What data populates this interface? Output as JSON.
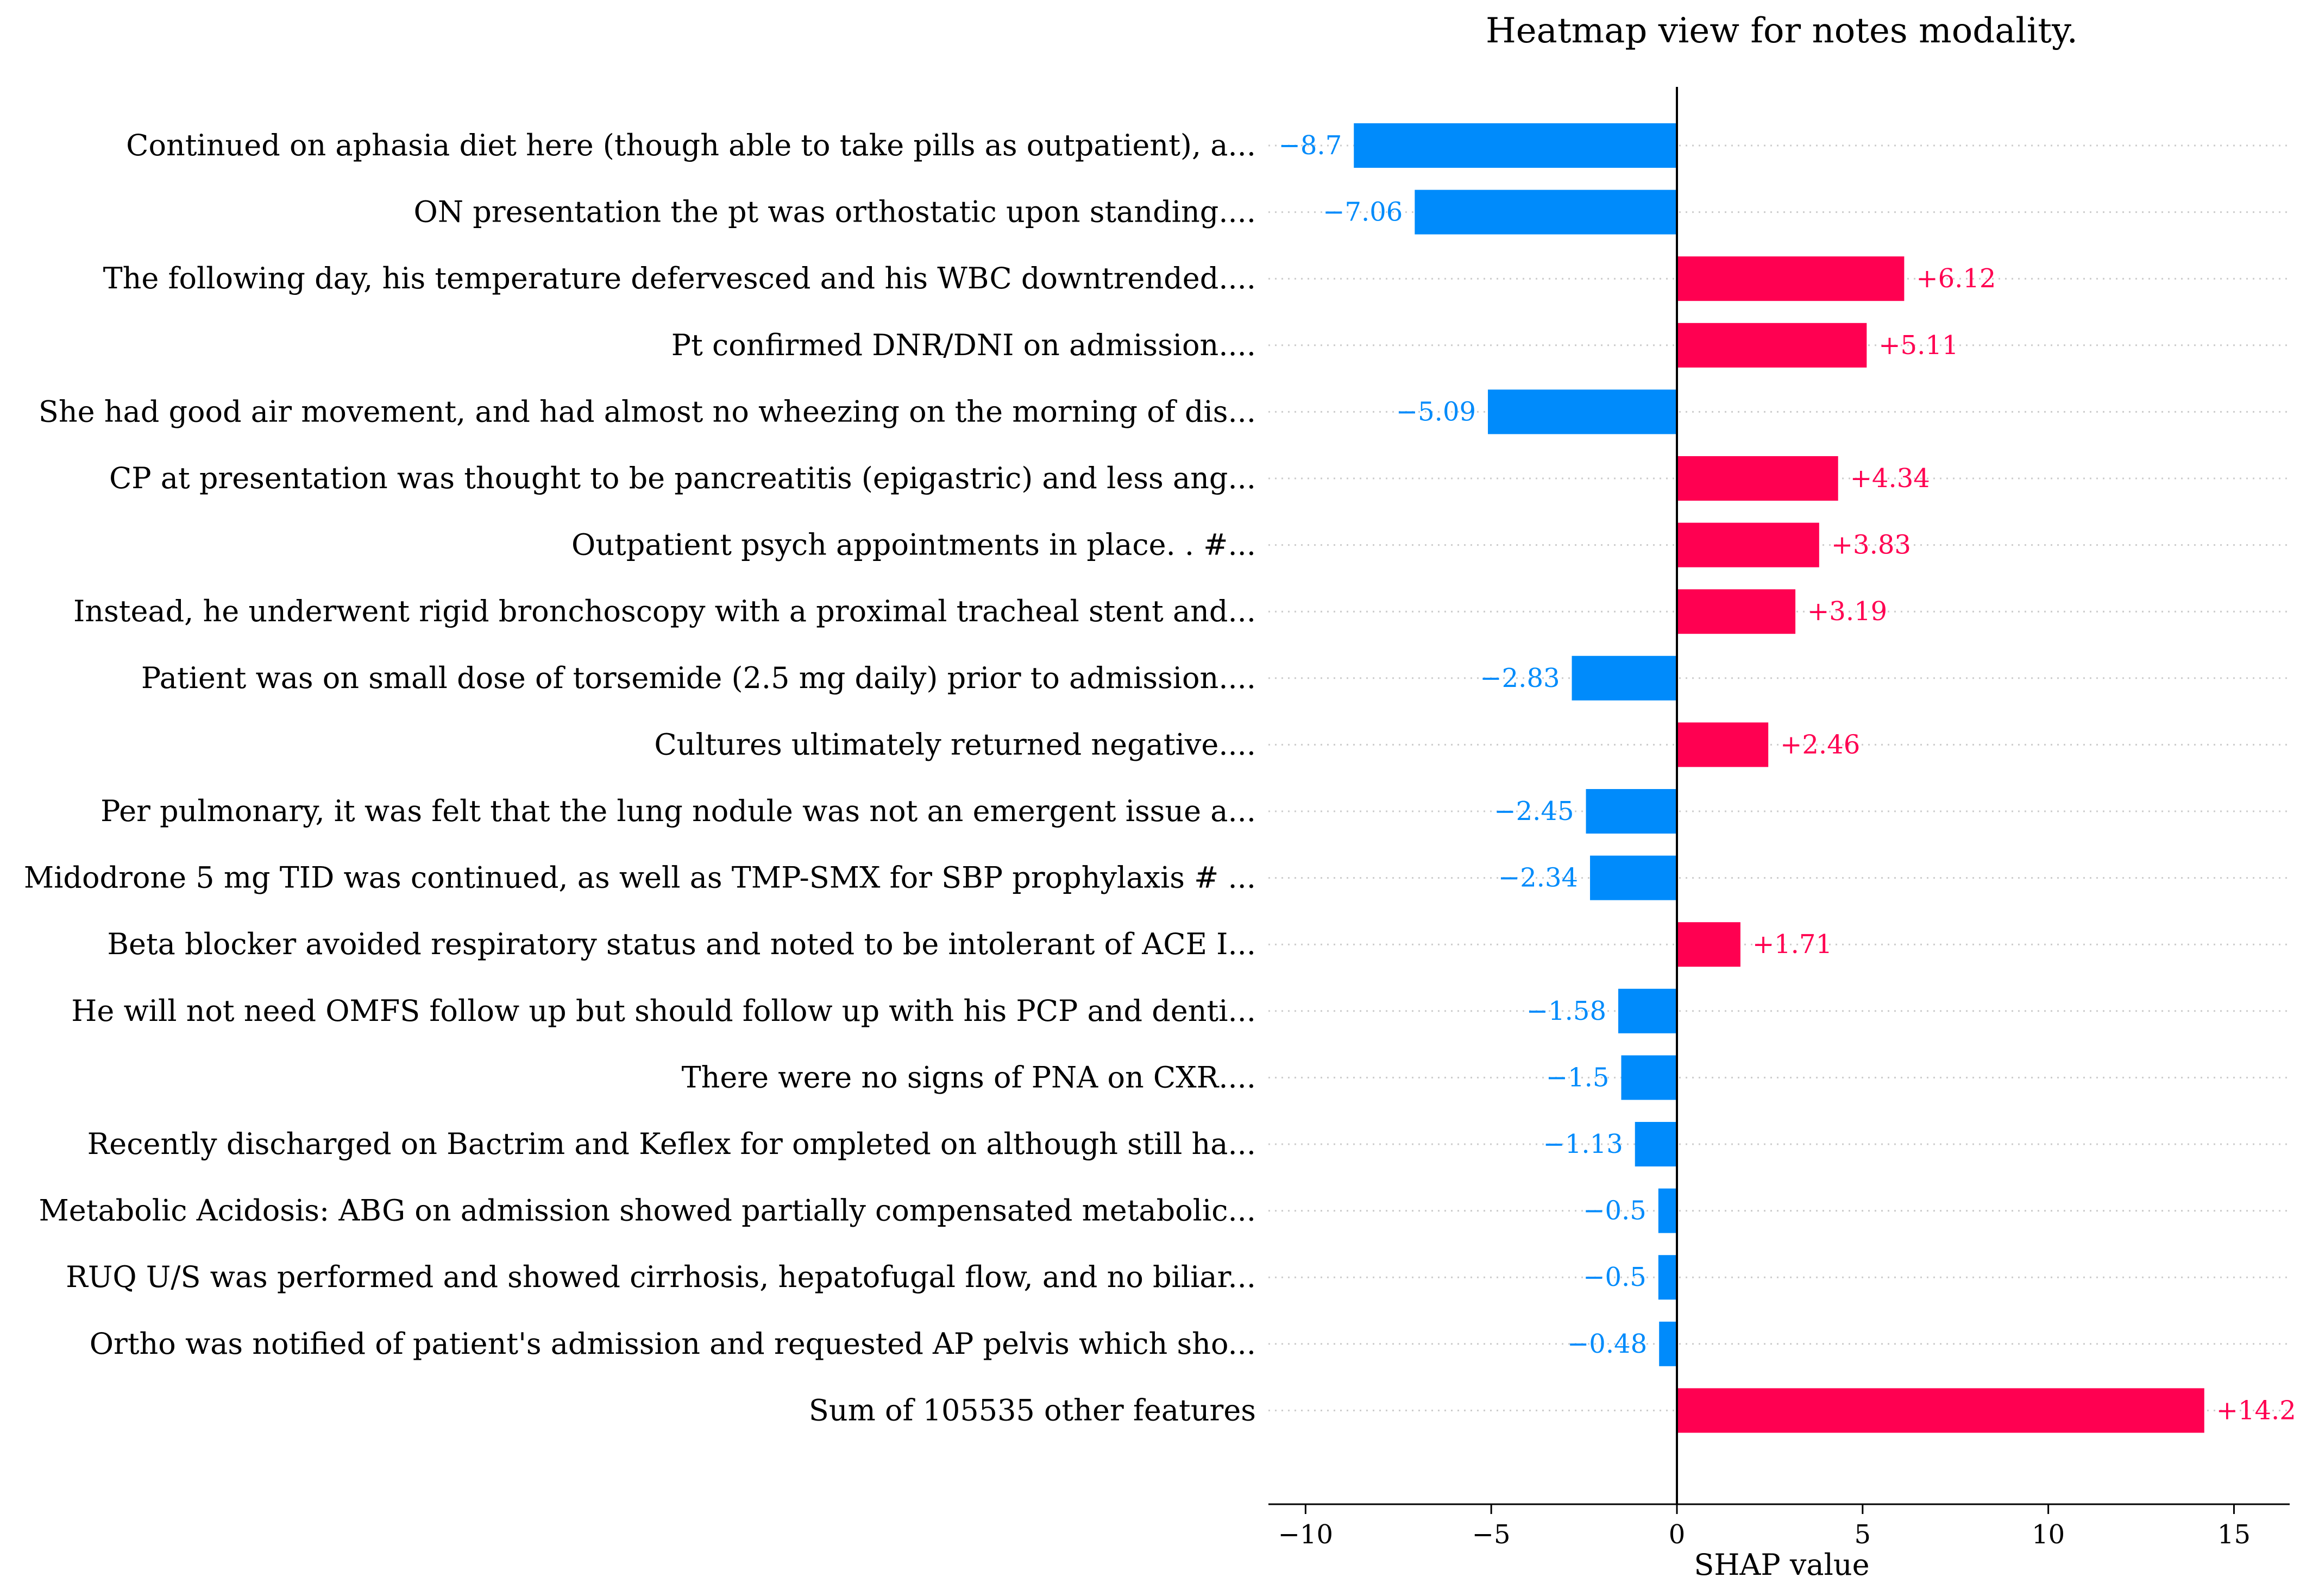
{
  "chart_data": {
    "type": "bar",
    "orientation": "horizontal",
    "title": "Heatmap view for notes modality.",
    "xlabel": "SHAP value",
    "ylabel": "",
    "xlim": [
      -11,
      16.5
    ],
    "xticks": [
      -10,
      -5,
      0,
      5,
      10,
      15
    ],
    "xtick_labels": [
      "−10",
      "−5",
      "0",
      "5",
      "10",
      "15"
    ],
    "grid": "horizontal dotted row guides",
    "colors": {
      "positive": "#ff0051",
      "negative": "#008bfb",
      "axis": "#000000",
      "grid": "#cccccc"
    },
    "categories": [
      "Continued on aphasia diet here (though able to take pills as outpatient), a...",
      "ON presentation the pt was orthostatic upon standing....",
      "The following day, his temperature defervesced and his WBC downtrended....",
      "Pt confirmed DNR/DNI on admission....",
      "She had good air movement, and had almost no wheezing on the morning of dis...",
      "CP at presentation was thought to be pancreatitis (epigastric) and less ang...",
      "Outpatient psych appointments in place. . #...",
      "Instead, he underwent rigid bronchoscopy with a proximal tracheal stent and...",
      "Patient was on small dose of torsemide (2.5 mg daily) prior to admission....",
      "Cultures ultimately returned negative....",
      "Per pulmonary, it was felt that the lung nodule was not an emergent issue a...",
      "Midodrone 5 mg TID was continued, as well as TMP-SMX for SBP prophylaxis # ...",
      "Beta blocker avoided respiratory status and noted to be intolerant of ACE I...",
      "He will not need OMFS follow up but should follow up with his PCP and denti...",
      "There were no signs of PNA on CXR....",
      "Recently discharged on Bactrim and Keflex for ompleted on although still ha...",
      "Metabolic Acidosis: ABG on admission showed partially compensated metabolic...",
      "RUQ U/S was performed and showed cirrhosis, hepatofugal flow, and no biliar...",
      "Ortho was notified of patient's admission and requested AP pelvis which sho...",
      "Sum of 105535 other features"
    ],
    "values": [
      -8.7,
      -7.06,
      6.12,
      5.11,
      -5.09,
      4.34,
      3.83,
      3.19,
      -2.83,
      2.46,
      -2.45,
      -2.34,
      1.71,
      -1.58,
      -1.5,
      -1.13,
      -0.5,
      -0.5,
      -0.48,
      14.2
    ],
    "value_labels": [
      "−8.7",
      "−7.06",
      "+6.12",
      "+5.11",
      "−5.09",
      "+4.34",
      "+3.83",
      "+3.19",
      "−2.83",
      "+2.46",
      "−2.45",
      "−2.34",
      "+1.71",
      "−1.58",
      "−1.5",
      "−1.13",
      "−0.5",
      "−0.5",
      "−0.48",
      "+14.2"
    ]
  }
}
